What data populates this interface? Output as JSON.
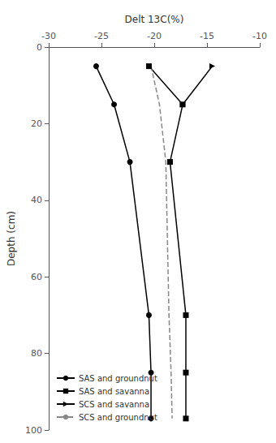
{
  "chart_data": {
    "type": "line",
    "xlabel": "Delt 13C(%)",
    "ylabel": "Depth (cm)",
    "xlim": [
      -30,
      -10
    ],
    "ylim": [
      100,
      0
    ],
    "xticks": [
      -30,
      -25,
      -20,
      -15,
      -10
    ],
    "yticks": [
      0,
      20,
      40,
      60,
      80,
      100
    ],
    "grid": false,
    "legend": "lower left",
    "series": [
      {
        "name": "SAS and groundnut",
        "color": "#000000",
        "marker": "circle",
        "line_style": "solid",
        "x": [
          -25.5,
          -23.8,
          -22.3,
          -20.5,
          -20.3,
          -20.3
        ],
        "values": [
          5,
          15,
          30,
          70,
          85,
          97
        ]
      },
      {
        "name": "SAS and savanna",
        "color": "#000000",
        "marker": "square",
        "line_style": "solid",
        "x": [
          -20.5,
          -17.3,
          -18.5,
          -17.0,
          -17.0,
          -17.0
        ],
        "values": [
          5,
          15,
          30,
          70,
          85,
          97
        ]
      },
      {
        "name": "SCS and savanna",
        "color": "#000000",
        "marker": "triangle-right",
        "line_style": "solid",
        "x": [
          -14.5,
          -17.3
        ],
        "values": [
          5,
          15
        ]
      },
      {
        "name": "SCS and groundnut",
        "color": "#888888",
        "marker": "none",
        "line_style": "dashed",
        "x": [
          -20.3,
          -19.5,
          -18.9,
          -18.6,
          -18.4,
          -18.3
        ],
        "values": [
          5,
          15,
          30,
          70,
          85,
          97
        ]
      }
    ]
  }
}
